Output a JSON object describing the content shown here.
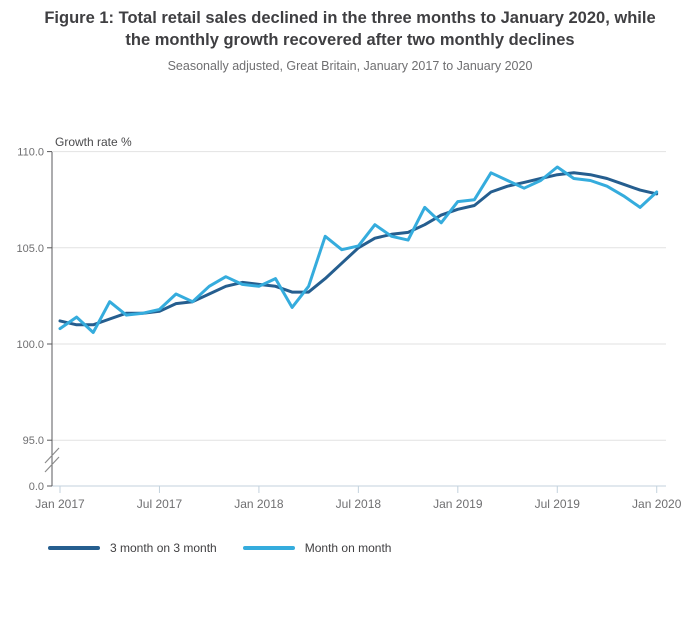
{
  "header": {
    "title": "Figure 1: Total retail sales declined in the three months to January 2020, while the monthly growth recovered after two monthly declines",
    "subtitle": "Seasonally adjusted, Great Britain, January 2017 to January 2020"
  },
  "chart_data": {
    "type": "line",
    "title": "Figure 1: Total retail sales declined in the three months to January 2020, while the monthly growth recovered after two monthly declines",
    "subtitle": "Seasonally adjusted, Great Britain, January 2017 to January 2020",
    "ylabel": "Growth rate %",
    "x_tick_labels": [
      "Jan 2017",
      "Jul 2017",
      "Jan 2018",
      "Jul 2018",
      "Jan 2019",
      "Jul 2019",
      "Jan 2020"
    ],
    "y_tick_labels": [
      "110.0",
      "105.0",
      "100.0",
      "95.0",
      "0.0"
    ],
    "y_gridline_values": [
      110,
      105,
      100,
      95
    ],
    "ylim": [
      95,
      110
    ],
    "y_axis_break": true,
    "grid": "horizontal",
    "legend_position": "bottom-left",
    "x": [
      "Jan 2017",
      "Feb 2017",
      "Mar 2017",
      "Apr 2017",
      "May 2017",
      "Jun 2017",
      "Jul 2017",
      "Aug 2017",
      "Sep 2017",
      "Oct 2017",
      "Nov 2017",
      "Dec 2017",
      "Jan 2018",
      "Feb 2018",
      "Mar 2018",
      "Apr 2018",
      "May 2018",
      "Jun 2018",
      "Jul 2018",
      "Aug 2018",
      "Sep 2018",
      "Oct 2018",
      "Nov 2018",
      "Dec 2018",
      "Jan 2019",
      "Feb 2019",
      "Mar 2019",
      "Apr 2019",
      "May 2019",
      "Jun 2019",
      "Jul 2019",
      "Aug 2019",
      "Sep 2019",
      "Oct 2019",
      "Nov 2019",
      "Dec 2019",
      "Jan 2020"
    ],
    "series": [
      {
        "name": "3 month on 3 month",
        "color": "#255e8f",
        "values": [
          101.2,
          101.0,
          101.0,
          101.3,
          101.6,
          101.6,
          101.7,
          102.1,
          102.2,
          102.6,
          103.0,
          103.2,
          103.1,
          103.0,
          102.7,
          102.7,
          103.4,
          104.2,
          105.0,
          105.5,
          105.7,
          105.8,
          106.2,
          106.7,
          107.0,
          107.2,
          107.9,
          108.2,
          108.4,
          108.6,
          108.8,
          108.9,
          108.8,
          108.6,
          108.3,
          108.0,
          107.8
        ]
      },
      {
        "name": "Month on month",
        "color": "#35acdd",
        "values": [
          100.8,
          101.4,
          100.6,
          102.2,
          101.5,
          101.6,
          101.8,
          102.6,
          102.2,
          103.0,
          103.5,
          103.1,
          103.0,
          103.4,
          101.9,
          103.0,
          105.6,
          104.9,
          105.1,
          106.2,
          105.6,
          105.4,
          107.1,
          106.3,
          107.4,
          107.5,
          108.9,
          108.5,
          108.1,
          108.5,
          109.2,
          108.6,
          108.5,
          108.2,
          107.7,
          107.1,
          107.9
        ]
      }
    ],
    "colors": {
      "gridline": "#e2e2e2",
      "y_axis": "#5a5a5c",
      "x_axis": "#c3d2dd",
      "tick_text": "#6f6f71"
    }
  }
}
